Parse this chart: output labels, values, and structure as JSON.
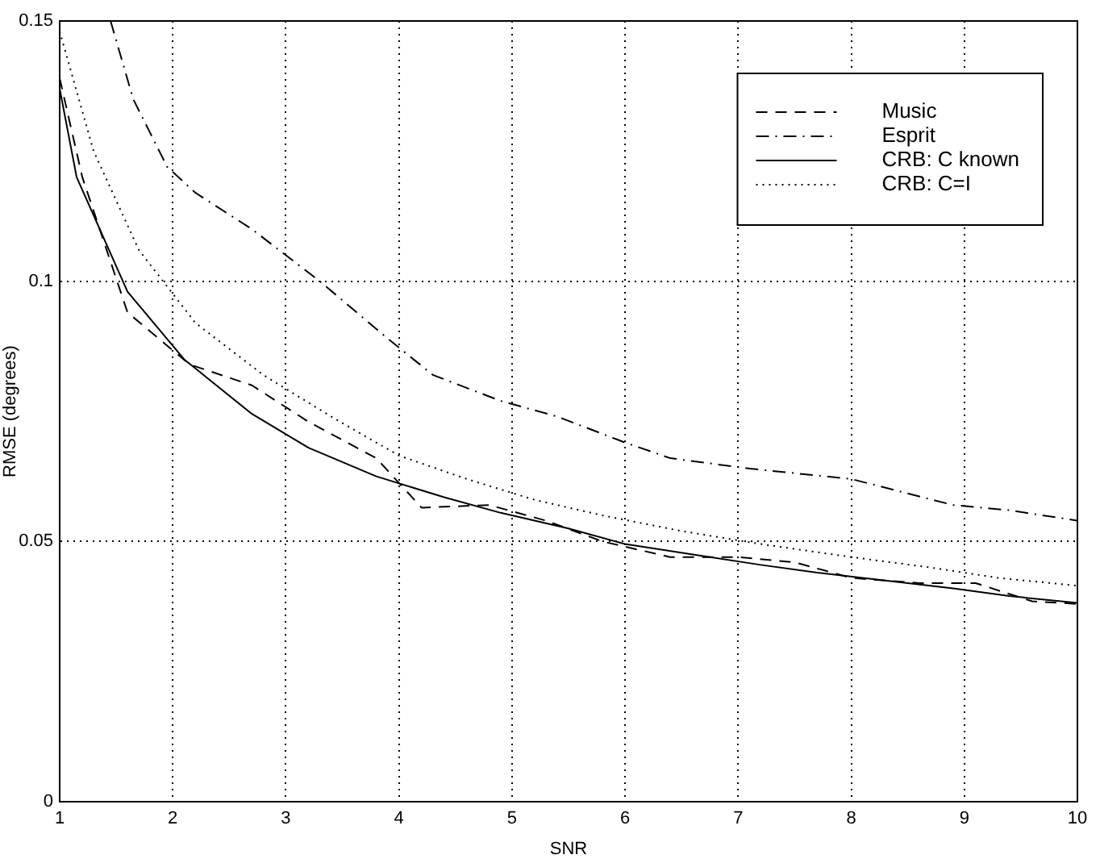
{
  "chart_data": {
    "type": "line",
    "xlabel": "SNR",
    "ylabel": "RMSE (degrees)",
    "xlim": [
      1,
      10
    ],
    "ylim": [
      0,
      0.15
    ],
    "xticks": [
      1,
      2,
      3,
      4,
      5,
      6,
      7,
      8,
      9,
      10
    ],
    "yticks": [
      0,
      0.05,
      0.1,
      0.15
    ],
    "grid": true,
    "legend": "top right",
    "marker": "none",
    "series": [
      {
        "name": "Music",
        "color": "#000000",
        "line_style": "dashed",
        "x": [
          1,
          1.2,
          1.6,
          2.15,
          2.7,
          3.2,
          3.8,
          4.2,
          4.8,
          5.3,
          5.8,
          6.4,
          7.0,
          7.5,
          8.0,
          8.6,
          9.1,
          9.6,
          10
        ],
        "values": [
          0.139,
          0.12,
          0.094,
          0.084,
          0.08,
          0.073,
          0.066,
          0.0565,
          0.057,
          0.054,
          0.05,
          0.047,
          0.047,
          0.046,
          0.043,
          0.042,
          0.042,
          0.0385,
          0.038
        ]
      },
      {
        "name": "Esprit",
        "color": "#000000",
        "line_style": "dashdot",
        "x": [
          1.45,
          1.65,
          1.95,
          2.2,
          2.7,
          3.3,
          3.9,
          4.3,
          4.9,
          5.4,
          6.0,
          6.4,
          7.1,
          8.0,
          8.9,
          9.4,
          10
        ],
        "values": [
          0.15,
          0.135,
          0.122,
          0.117,
          0.11,
          0.1,
          0.089,
          0.082,
          0.077,
          0.074,
          0.069,
          0.066,
          0.064,
          0.062,
          0.057,
          0.056,
          0.054
        ]
      },
      {
        "name": "CRB: C known",
        "color": "#000000",
        "line_style": "solid",
        "x": [
          1,
          1.15,
          1.6,
          2.1,
          2.7,
          3.2,
          3.8,
          4.4,
          4.9,
          5.5,
          6.0,
          6.6,
          7.2,
          7.7,
          8.3,
          8.9,
          9.4,
          10
        ],
        "values": [
          0.137,
          0.12,
          0.098,
          0.085,
          0.0745,
          0.068,
          0.0625,
          0.0585,
          0.0555,
          0.0525,
          0.0495,
          0.0475,
          0.0455,
          0.044,
          0.0425,
          0.041,
          0.0395,
          0.0382
        ]
      },
      {
        "name": "CRB: C=I",
        "color": "#000000",
        "line_style": "dotted",
        "x": [
          1,
          1.3,
          1.7,
          2.2,
          2.8,
          3.4,
          4.0,
          4.6,
          5.2,
          5.8,
          6.5,
          7.2,
          8.0,
          8.7,
          9.3,
          10
        ],
        "values": [
          0.148,
          0.125,
          0.106,
          0.092,
          0.082,
          0.074,
          0.0665,
          0.062,
          0.058,
          0.055,
          0.052,
          0.0495,
          0.047,
          0.045,
          0.043,
          0.0415
        ]
      }
    ]
  }
}
